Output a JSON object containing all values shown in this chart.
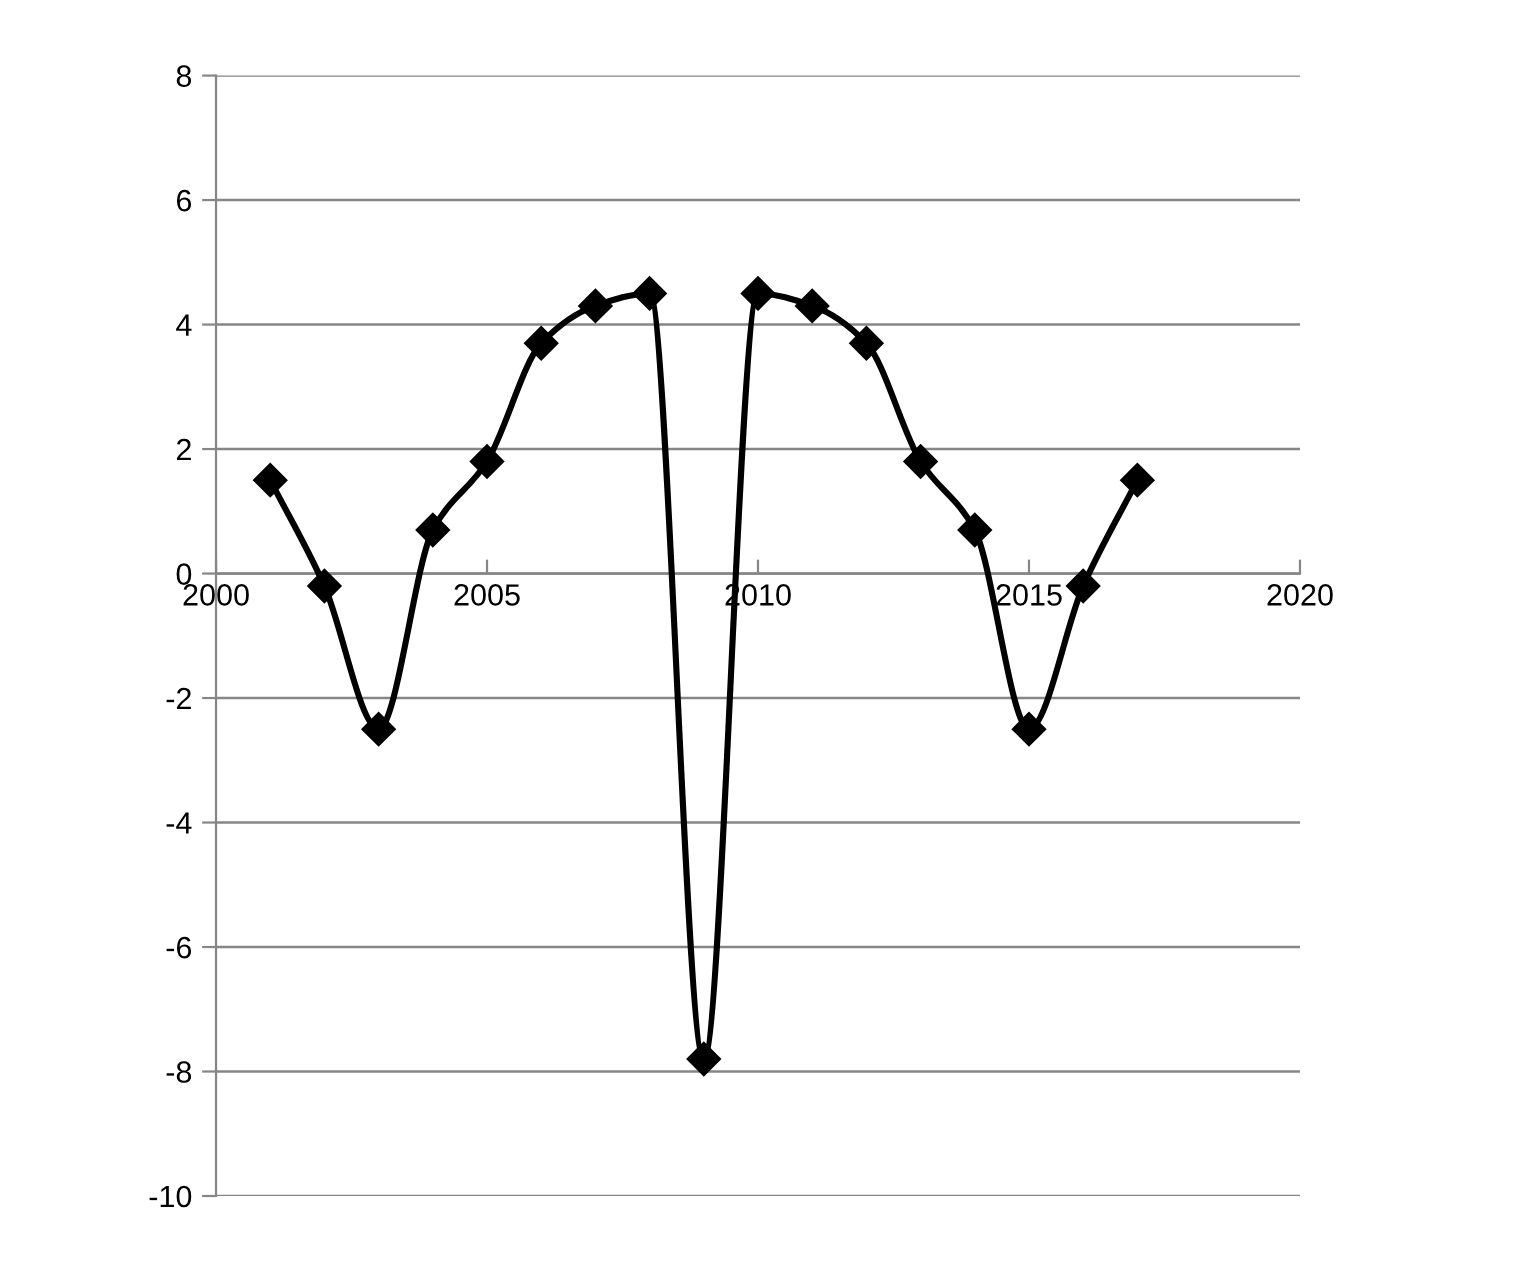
{
  "chart_data": {
    "type": "line",
    "x": [
      2001,
      2002,
      2003,
      2004,
      2005,
      2006,
      2007,
      2008,
      2009,
      2010,
      2011,
      2012,
      2013,
      2014,
      2015,
      2016,
      2017
    ],
    "series": [
      {
        "color": "#000000",
        "values": [
          1.5,
          -0.2,
          -2.5,
          0.7,
          1.8,
          3.7,
          4.3,
          4.5,
          -7.8,
          4.5,
          4.3,
          3.7,
          1.8,
          0.7,
          -2.5,
          -0.2,
          1.5
        ]
      }
    ],
    "xlim": [
      2000,
      2020
    ],
    "xticks": [
      2000,
      2005,
      2010,
      2015,
      2020
    ],
    "ylim": [
      -10,
      8
    ],
    "yticks": [
      -10,
      -8,
      -6,
      -4,
      -2,
      0,
      2,
      4,
      6,
      8
    ],
    "grid": "y",
    "marker": "diamond",
    "line_style": "solid",
    "legend": false
  }
}
